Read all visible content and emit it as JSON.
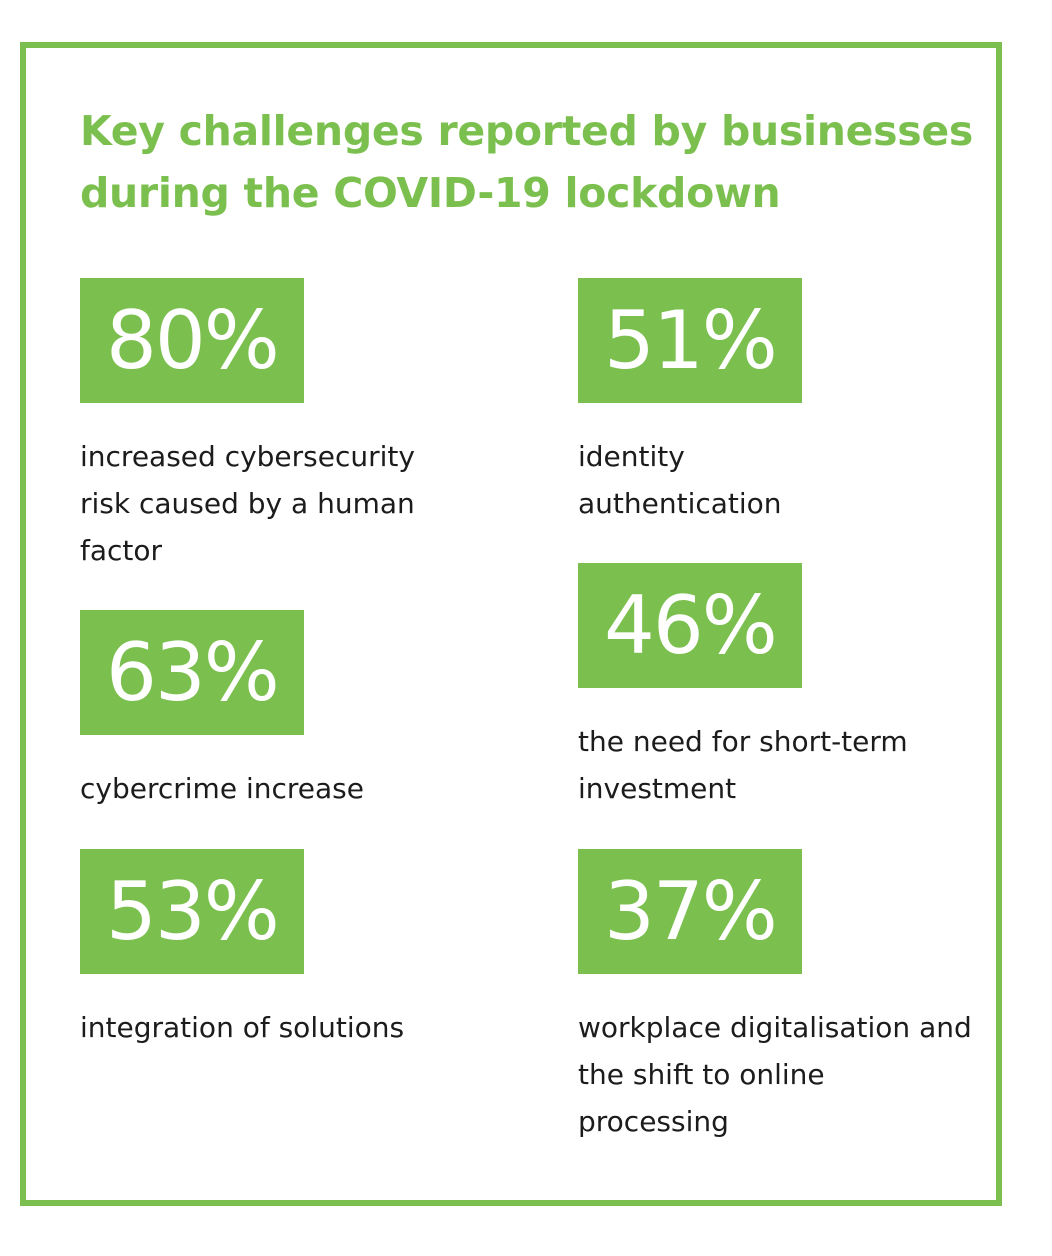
{
  "title": "Key challenges reported by businesses during the COVID-19 lockdown",
  "colors": {
    "accent": "#7bc04f",
    "text": "#1c1c1c",
    "background": "#ffffff"
  },
  "stats": [
    {
      "value": "80%",
      "label": "increased cybersecurity risk caused by a human factor"
    },
    {
      "value": "51%",
      "label": "identity authentication"
    },
    {
      "value": "63%",
      "label": "cybercrime increase"
    },
    {
      "value": "46%",
      "label": "the need for short-term investment"
    },
    {
      "value": "53%",
      "label": "integration of solutions"
    },
    {
      "value": "37%",
      "label": "workplace digitalisation and the shift to online processing"
    }
  ]
}
